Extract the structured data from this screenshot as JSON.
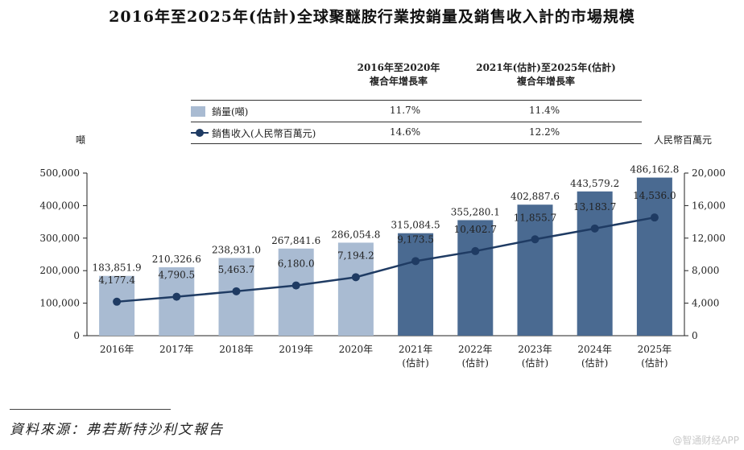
{
  "chart_data": {
    "type": "bar+line",
    "title": "2016年至2025年(估計)全球聚醚胺行業按銷量及銷售收入計的市場規模",
    "categories": [
      "2016年",
      "2017年",
      "2018年",
      "2019年",
      "2020年",
      "2021年\n(估計)",
      "2022年\n(估計)",
      "2023年\n(估計)",
      "2024年\n(估計)",
      "2025年\n(估計)"
    ],
    "series": [
      {
        "name": "銷量(噸)",
        "type": "bar",
        "axis": "left",
        "values": [
          183851.9,
          210326.6,
          238931.0,
          267841.6,
          286054.8,
          315084.5,
          355280.1,
          402887.6,
          443579.2,
          486162.8
        ],
        "labels": [
          "183,851.9",
          "210,326.6",
          "238,931.0",
          "267,841.6",
          "286,054.8",
          "315,084.5",
          "355,280.1",
          "402,887.6",
          "443,579.2",
          "486,162.8"
        ]
      },
      {
        "name": "銷售收入(人民幣百萬元)",
        "type": "line",
        "axis": "right",
        "values": [
          4177.4,
          4790.5,
          5463.7,
          6180.0,
          7194.2,
          9173.5,
          10402.7,
          11855.7,
          13183.7,
          14536.0
        ],
        "labels": [
          "4,177.4",
          "4,790.5",
          "5,463.7",
          "6,180.0",
          "7,194.2",
          "9,173.5",
          "10,402.7",
          "11,855.7",
          "13,183.7",
          "14,536.0"
        ]
      }
    ],
    "ylabel": "噸",
    "ylabel_right": "人民幣百萬元",
    "ylim": [
      0,
      500000
    ],
    "ylim_right": [
      0,
      20000
    ],
    "yticks": [
      "0",
      "100,000",
      "200,000",
      "300,000",
      "400,000",
      "500,000"
    ],
    "yticks_right": [
      "0",
      "4,000",
      "8,000",
      "12,000",
      "16,000",
      "20,000"
    ],
    "colors": {
      "historical": "#a9bbd2",
      "forecast": "#4a6a91",
      "line": "#1f3b63"
    },
    "forecast_from_index": 5
  },
  "cagr_table": {
    "header1": "2016年至2020年\n複合年增長率",
    "header2": "2021年(估計)至2025年(估計)\n複合年增長率",
    "rows": [
      {
        "label": "銷量(噸)",
        "v1": "11.7%",
        "v2": "11.4%"
      },
      {
        "label": "銷售收入(人民幣百萬元)",
        "v1": "14.6%",
        "v2": "12.2%"
      }
    ]
  },
  "source": "資料來源：弗若斯特沙利文報告",
  "watermark": "@智通财经APP"
}
